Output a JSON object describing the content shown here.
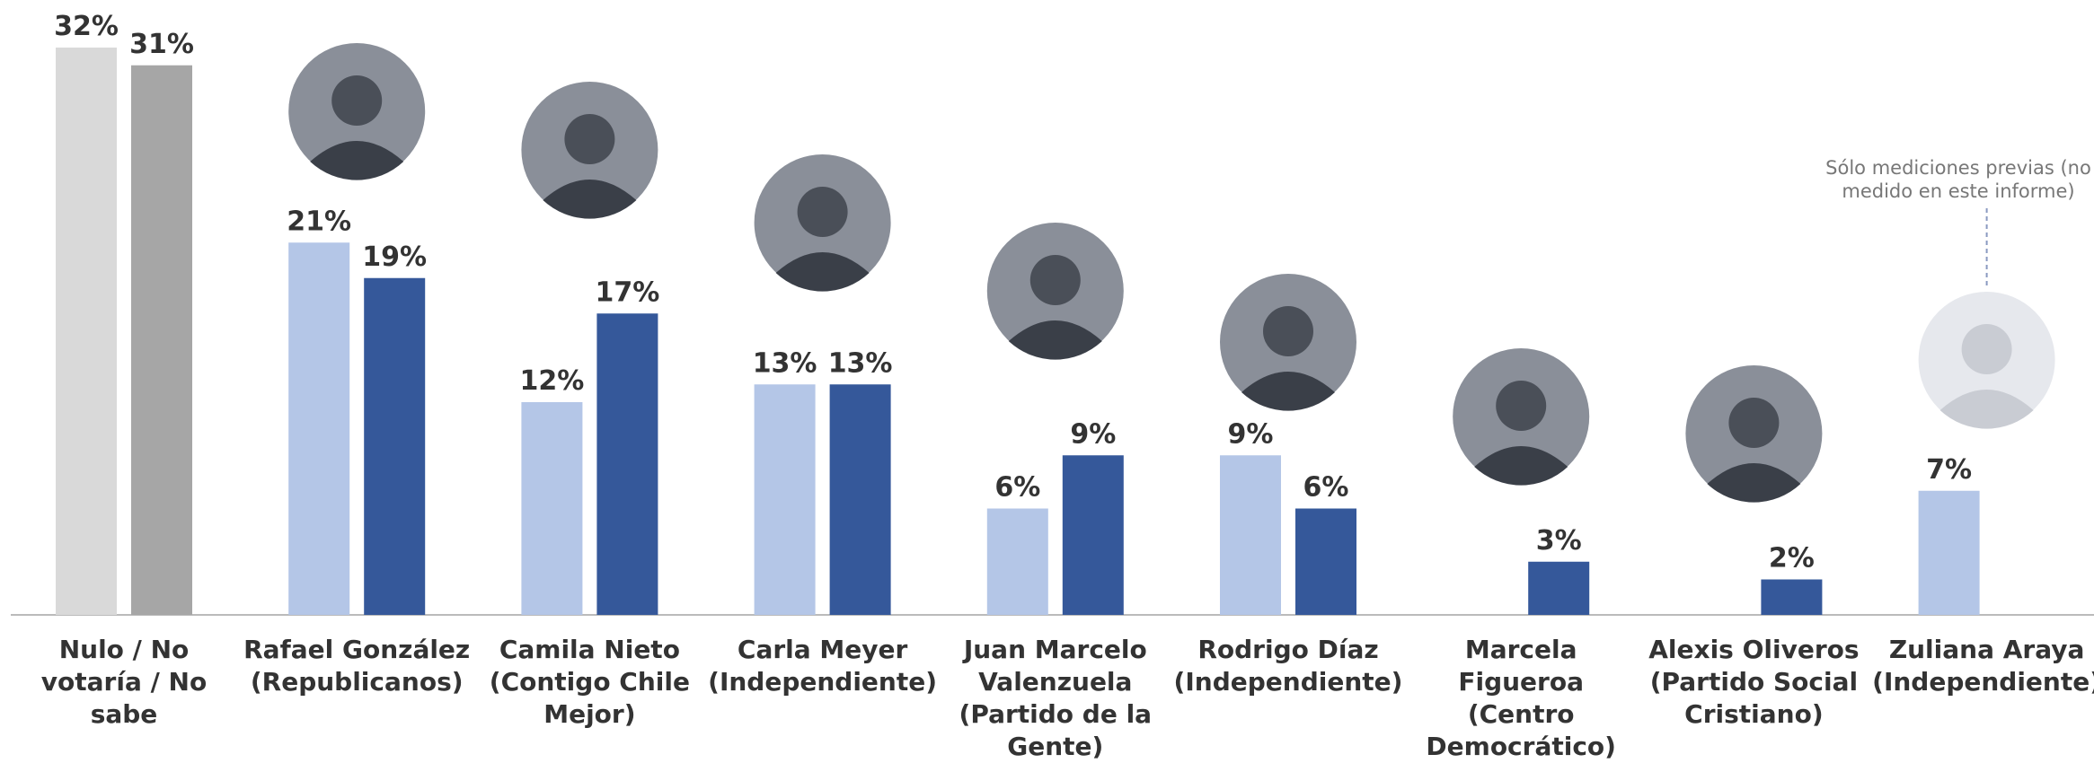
{
  "chart_data": {
    "type": "bar",
    "categories": [
      "Nulo / No votaría / No sabe",
      "Rafael González (Republicanos)",
      "Camila Nieto (Contigo Chile Mejor)",
      "Carla Meyer (Independiente)",
      "Juan Marcelo Valenzuela (Partido de la Gente)",
      "Rodrigo Díaz (Independiente)",
      "Marcela Figueroa (Centro Democrático)",
      "Alexis Oliveros (Partido Social Cristiano)",
      "Zuliana Araya (Independiente)"
    ],
    "series": [
      {
        "colors": [
          "#d9d9d9",
          "#b4c6e7",
          "#b4c6e7",
          "#b4c6e7",
          "#b4c6e7",
          "#b4c6e7",
          "#b4c6e7",
          "#b4c6e7",
          "#b4c6e7"
        ],
        "values": [
          32,
          21,
          12,
          13,
          6,
          9,
          null,
          null,
          7
        ],
        "value_labels": [
          "32%",
          "21%",
          "12%",
          "13%",
          "6%",
          "9%",
          null,
          null,
          "7%"
        ]
      },
      {
        "colors": [
          "#a6a6a6",
          "#35589a",
          "#35589a",
          "#35589a",
          "#35589a",
          "#35589a",
          "#35589a",
          "#35589a",
          "#35589a"
        ],
        "values": [
          31,
          19,
          17,
          13,
          9,
          6,
          3,
          2,
          null
        ],
        "value_labels": [
          "31%",
          "19%",
          "17%",
          "13%",
          "9%",
          "6%",
          "3%",
          "2%",
          null
        ]
      }
    ],
    "annotation": "Sólo mediciones previas (no medido en este informe)"
  }
}
